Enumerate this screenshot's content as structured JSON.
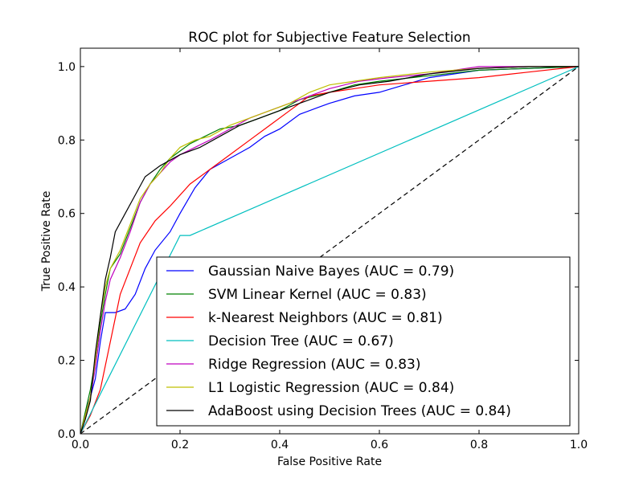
{
  "chart_data": {
    "type": "line",
    "title": "ROC plot for Subjective Feature Selection",
    "xlabel": "False Positive Rate",
    "ylabel": "True Positive Rate",
    "xlim": [
      0.0,
      1.0
    ],
    "ylim": [
      0.0,
      1.05
    ],
    "xticks": [
      "0.0",
      "0.2",
      "0.4",
      "0.6",
      "0.8",
      "1.0"
    ],
    "yticks": [
      "0.0",
      "0.2",
      "0.4",
      "0.6",
      "0.8",
      "1.0"
    ],
    "grid": false,
    "legend_position": "lower-right",
    "reference_line": {
      "style": "dashed",
      "color": "#000000",
      "points": [
        [
          0,
          0
        ],
        [
          1,
          1
        ]
      ]
    },
    "series": [
      {
        "name": "Gaussian Naive Bayes  (AUC = 0.79)",
        "color": "#0000ff",
        "points": [
          [
            0,
            0
          ],
          [
            0.005,
            0.02
          ],
          [
            0.01,
            0.05
          ],
          [
            0.015,
            0.08
          ],
          [
            0.02,
            0.1
          ],
          [
            0.03,
            0.15
          ],
          [
            0.04,
            0.25
          ],
          [
            0.05,
            0.33
          ],
          [
            0.07,
            0.33
          ],
          [
            0.09,
            0.34
          ],
          [
            0.11,
            0.38
          ],
          [
            0.13,
            0.45
          ],
          [
            0.15,
            0.5
          ],
          [
            0.18,
            0.55
          ],
          [
            0.2,
            0.6
          ],
          [
            0.23,
            0.67
          ],
          [
            0.26,
            0.72
          ],
          [
            0.3,
            0.75
          ],
          [
            0.34,
            0.78
          ],
          [
            0.37,
            0.81
          ],
          [
            0.4,
            0.83
          ],
          [
            0.44,
            0.87
          ],
          [
            0.48,
            0.89
          ],
          [
            0.5,
            0.9
          ],
          [
            0.55,
            0.92
          ],
          [
            0.6,
            0.93
          ],
          [
            0.65,
            0.95
          ],
          [
            0.7,
            0.97
          ],
          [
            0.8,
            0.99
          ],
          [
            0.9,
            0.995
          ],
          [
            1,
            1
          ]
        ]
      },
      {
        "name": "SVM Linear Kernel  (AUC = 0.83)",
        "color": "#008000",
        "points": [
          [
            0,
            0
          ],
          [
            0.01,
            0.06
          ],
          [
            0.02,
            0.12
          ],
          [
            0.03,
            0.2
          ],
          [
            0.04,
            0.3
          ],
          [
            0.05,
            0.38
          ],
          [
            0.06,
            0.45
          ],
          [
            0.08,
            0.49
          ],
          [
            0.1,
            0.56
          ],
          [
            0.12,
            0.63
          ],
          [
            0.14,
            0.68
          ],
          [
            0.16,
            0.72
          ],
          [
            0.18,
            0.75
          ],
          [
            0.2,
            0.77
          ],
          [
            0.22,
            0.79
          ],
          [
            0.25,
            0.81
          ],
          [
            0.28,
            0.83
          ],
          [
            0.32,
            0.84
          ],
          [
            0.36,
            0.86
          ],
          [
            0.4,
            0.88
          ],
          [
            0.44,
            0.91
          ],
          [
            0.5,
            0.93
          ],
          [
            0.55,
            0.95
          ],
          [
            0.6,
            0.96
          ],
          [
            0.7,
            0.975
          ],
          [
            0.8,
            0.99
          ],
          [
            0.9,
            0.995
          ],
          [
            1,
            1
          ]
        ]
      },
      {
        "name": "k-Nearest Neighbors  (AUC = 0.81)",
        "color": "#ff0000",
        "points": [
          [
            0,
            0
          ],
          [
            0.02,
            0.05
          ],
          [
            0.04,
            0.12
          ],
          [
            0.06,
            0.25
          ],
          [
            0.08,
            0.38
          ],
          [
            0.1,
            0.45
          ],
          [
            0.12,
            0.52
          ],
          [
            0.15,
            0.58
          ],
          [
            0.18,
            0.62
          ],
          [
            0.22,
            0.68
          ],
          [
            0.26,
            0.72
          ],
          [
            0.3,
            0.76
          ],
          [
            0.34,
            0.8
          ],
          [
            0.38,
            0.84
          ],
          [
            0.42,
            0.88
          ],
          [
            0.46,
            0.92
          ],
          [
            0.5,
            0.93
          ],
          [
            0.55,
            0.94
          ],
          [
            0.6,
            0.95
          ],
          [
            0.7,
            0.96
          ],
          [
            0.8,
            0.97
          ],
          [
            0.9,
            0.985
          ],
          [
            1,
            1
          ]
        ]
      },
      {
        "name": "Decision Tree  (AUC = 0.67)",
        "color": "#00bfbf",
        "points": [
          [
            0,
            0
          ],
          [
            0.2,
            0.54
          ],
          [
            0.22,
            0.54
          ],
          [
            1,
            1
          ]
        ]
      },
      {
        "name": "Ridge Regression  (AUC = 0.83)",
        "color": "#bf00bf",
        "points": [
          [
            0,
            0
          ],
          [
            0.01,
            0.05
          ],
          [
            0.02,
            0.1
          ],
          [
            0.03,
            0.18
          ],
          [
            0.04,
            0.28
          ],
          [
            0.05,
            0.36
          ],
          [
            0.06,
            0.42
          ],
          [
            0.08,
            0.48
          ],
          [
            0.1,
            0.55
          ],
          [
            0.12,
            0.63
          ],
          [
            0.14,
            0.68
          ],
          [
            0.16,
            0.71
          ],
          [
            0.18,
            0.74
          ],
          [
            0.2,
            0.76
          ],
          [
            0.23,
            0.78
          ],
          [
            0.26,
            0.8
          ],
          [
            0.3,
            0.83
          ],
          [
            0.34,
            0.86
          ],
          [
            0.38,
            0.88
          ],
          [
            0.42,
            0.9
          ],
          [
            0.46,
            0.92
          ],
          [
            0.5,
            0.94
          ],
          [
            0.56,
            0.96
          ],
          [
            0.62,
            0.97
          ],
          [
            0.7,
            0.98
          ],
          [
            0.8,
            1.0
          ],
          [
            0.9,
            1.0
          ],
          [
            1,
            1
          ]
        ]
      },
      {
        "name": "L1 Logistic Regression (AUC = 0.84)",
        "color": "#bfbf00",
        "points": [
          [
            0,
            0
          ],
          [
            0.01,
            0.05
          ],
          [
            0.02,
            0.1
          ],
          [
            0.03,
            0.2
          ],
          [
            0.04,
            0.32
          ],
          [
            0.05,
            0.4
          ],
          [
            0.06,
            0.45
          ],
          [
            0.08,
            0.5
          ],
          [
            0.1,
            0.57
          ],
          [
            0.12,
            0.64
          ],
          [
            0.14,
            0.68
          ],
          [
            0.16,
            0.71
          ],
          [
            0.18,
            0.75
          ],
          [
            0.2,
            0.78
          ],
          [
            0.23,
            0.8
          ],
          [
            0.26,
            0.81
          ],
          [
            0.3,
            0.84
          ],
          [
            0.34,
            0.86
          ],
          [
            0.38,
            0.88
          ],
          [
            0.42,
            0.9
          ],
          [
            0.46,
            0.93
          ],
          [
            0.5,
            0.95
          ],
          [
            0.55,
            0.96
          ],
          [
            0.6,
            0.97
          ],
          [
            0.7,
            0.985
          ],
          [
            0.8,
            0.995
          ],
          [
            0.9,
            1.0
          ],
          [
            1,
            1
          ]
        ]
      },
      {
        "name": "AdaBoost using Decision Trees (AUC = 0.84)",
        "color": "#000000",
        "points": [
          [
            0,
            0
          ],
          [
            0.01,
            0.04
          ],
          [
            0.02,
            0.09
          ],
          [
            0.03,
            0.22
          ],
          [
            0.04,
            0.32
          ],
          [
            0.05,
            0.42
          ],
          [
            0.06,
            0.48
          ],
          [
            0.07,
            0.55
          ],
          [
            0.09,
            0.6
          ],
          [
            0.11,
            0.65
          ],
          [
            0.13,
            0.7
          ],
          [
            0.16,
            0.73
          ],
          [
            0.2,
            0.76
          ],
          [
            0.24,
            0.78
          ],
          [
            0.28,
            0.81
          ],
          [
            0.32,
            0.84
          ],
          [
            0.36,
            0.86
          ],
          [
            0.4,
            0.88
          ],
          [
            0.44,
            0.9
          ],
          [
            0.5,
            0.93
          ],
          [
            0.56,
            0.95
          ],
          [
            0.62,
            0.96
          ],
          [
            0.7,
            0.98
          ],
          [
            0.8,
            0.995
          ],
          [
            0.9,
            1.0
          ],
          [
            1,
            1
          ]
        ]
      }
    ]
  }
}
